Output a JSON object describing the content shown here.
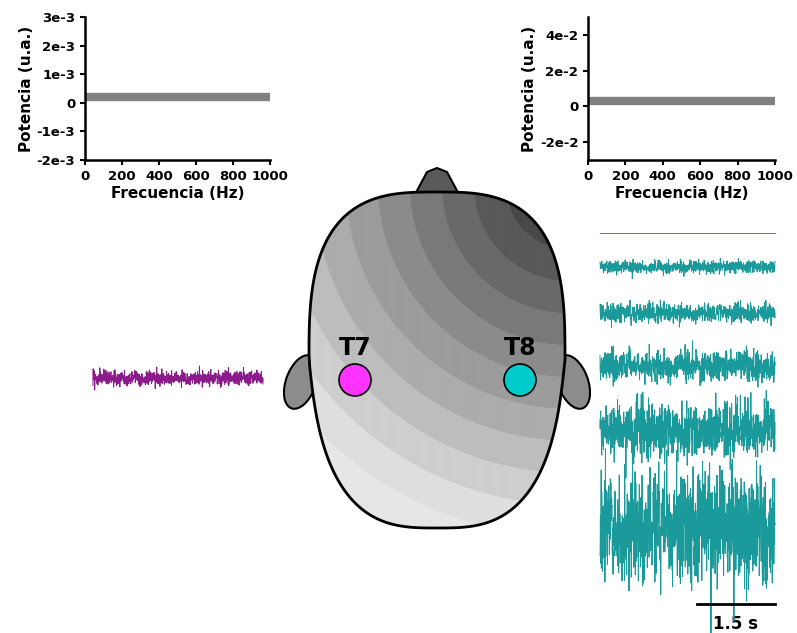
{
  "chart_data": [
    {
      "type": "line",
      "xlabel": "Frecuencia (Hz)",
      "ylabel": "Potencia (u.a.)",
      "x": [
        0,
        1000
      ],
      "values": [
        0.0002,
        0.0002
      ],
      "color": "#808080",
      "xlim": [
        0,
        1000
      ],
      "xticks": [
        0,
        200,
        400,
        600,
        800,
        1000
      ],
      "ylim": [
        -0.002,
        0.003
      ],
      "yticks": [
        {
          "value": -0.002,
          "label": "-2e-3"
        },
        {
          "value": -0.001,
          "label": "-1e-3"
        },
        0,
        {
          "value": 0.001,
          "label": "1e-3"
        },
        {
          "value": 0.002,
          "label": "2e-3"
        },
        {
          "value": 0.003,
          "label": "3e-3"
        }
      ]
    },
    {
      "type": "line",
      "xlabel": "Frecuencia (Hz)",
      "ylabel": "Potencia (u.a.)",
      "x": [
        0,
        1000
      ],
      "values": [
        0.003,
        0.003
      ],
      "color": "#808080",
      "xlim": [
        0,
        1000
      ],
      "xticks": [
        0,
        200,
        400,
        600,
        800,
        1000
      ],
      "ylim": [
        -0.03,
        0.05
      ],
      "yticks": [
        {
          "value": -0.02,
          "label": "-2e-2"
        },
        0,
        {
          "value": 0.02,
          "label": "2e-2"
        },
        {
          "value": 0.04,
          "label": "4e-2"
        }
      ]
    }
  ],
  "diagram": {
    "electrodes": [
      {
        "label": "T7",
        "color": "#ff33ff"
      },
      {
        "label": "T8",
        "color": "#00cccc"
      }
    ],
    "left_traces": [
      {
        "color": "#8b1a8b",
        "amplitude": 1.2
      }
    ],
    "right_traces": [
      {
        "color": "#1a9a9a",
        "amplitude": 0
      },
      {
        "color": "#1a9a9a",
        "amplitude": 1
      },
      {
        "color": "#1a9a9a",
        "amplitude": 1.5
      },
      {
        "color": "#1a9a9a",
        "amplitude": 2.5
      },
      {
        "color": "#1a9a9a",
        "amplitude": 4.5
      },
      {
        "color": "#1a9a9a",
        "amplitude": 9
      }
    ],
    "scale_bar": "1.5 s"
  }
}
